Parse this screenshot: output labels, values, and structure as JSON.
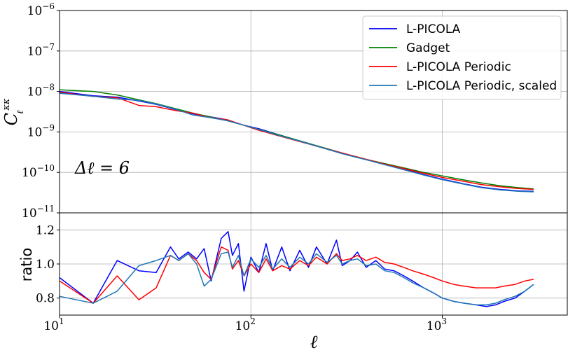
{
  "chart_data": [
    {
      "type": "line",
      "panel": "top",
      "xscale": "log",
      "yscale": "log",
      "xlim": [
        10,
        4500
      ],
      "ylim": [
        1e-11,
        1e-06
      ],
      "ylabel": "C_ℓ^κκ",
      "grid": true,
      "legend_position": "top-right",
      "annotation": "Δℓ = 6",
      "x_ticks": [
        {
          "base": "10",
          "exp": "1",
          "value": 10
        },
        {
          "base": "10",
          "exp": "2",
          "value": 100
        },
        {
          "base": "10",
          "exp": "3",
          "value": 1000
        }
      ],
      "y_ticks": [
        {
          "base": "10",
          "exp": "−6",
          "value": 1e-06
        },
        {
          "base": "10",
          "exp": "−7",
          "value": 1e-07
        },
        {
          "base": "10",
          "exp": "−8",
          "value": 1e-08
        },
        {
          "base": "10",
          "exp": "−9",
          "value": 1e-09
        },
        {
          "base": "10",
          "exp": "−10",
          "value": 1e-10
        },
        {
          "base": "10",
          "exp": "−11",
          "value": 1e-11
        }
      ],
      "x": [
        10,
        15,
        20,
        26,
        32,
        40,
        50,
        60,
        75,
        90,
        110,
        140,
        180,
        230,
        300,
        400,
        500,
        650,
        800,
        1000,
        1300,
        1600,
        2000,
        2500,
        3000
      ],
      "series": [
        {
          "name": "L-PICOLA",
          "color": "#0000ff",
          "values": [
            1e-08,
            7.8e-09,
            7.2e-09,
            5.8e-09,
            4.8e-09,
            3.6e-09,
            2.8e-09,
            2.4e-09,
            2e-09,
            1.5e-09,
            1.2e-09,
            8.5e-10,
            6e-10,
            4.3e-10,
            3e-10,
            2.1e-10,
            1.6e-10,
            1.15e-10,
            8.8e-11,
            6.8e-11,
            5.2e-11,
            4.3e-11,
            3.8e-11,
            3.5e-11,
            3.4e-11
          ]
        },
        {
          "name": "Gadget",
          "color": "#008000",
          "values": [
            1.1e-08,
            1e-08,
            8.2e-09,
            6.2e-09,
            5e-09,
            3.8e-09,
            2.9e-09,
            2.4e-09,
            1.9e-09,
            1.5e-09,
            1.15e-09,
            8.5e-10,
            6e-10,
            4.3e-10,
            3e-10,
            2.1e-10,
            1.65e-10,
            1.25e-10,
            1e-10,
            8.2e-11,
            6.5e-11,
            5.5e-11,
            4.7e-11,
            4.2e-11,
            3.9e-11
          ]
        },
        {
          "name": "L-PICOLA Periodic",
          "color": "#ff0000",
          "values": [
            9.5e-09,
            7.5e-09,
            7e-09,
            4.5e-09,
            4.2e-09,
            3.4e-09,
            2.9e-09,
            2.3e-09,
            2e-09,
            1.5e-09,
            1.1e-09,
            8e-10,
            5.8e-10,
            4.2e-10,
            3e-10,
            2.1e-10,
            1.6e-10,
            1.2e-10,
            9.5e-11,
            7.5e-11,
            6e-11,
            5e-11,
            4.4e-11,
            4e-11,
            3.8e-11
          ]
        },
        {
          "name": "L-PICOLA Periodic, scaled",
          "color": "#1f77b4",
          "values": [
            9e-09,
            7.6e-09,
            6.5e-09,
            6e-09,
            4.9e-09,
            3.7e-09,
            2.6e-09,
            2.3e-09,
            1.9e-09,
            1.5e-09,
            1.15e-09,
            8.2e-10,
            5.9e-10,
            4.2e-10,
            2.9e-10,
            2.05e-10,
            1.55e-10,
            1.12e-10,
            8.6e-11,
            6.6e-11,
            5.1e-11,
            4.2e-11,
            3.7e-11,
            3.4e-11,
            3.3e-11
          ]
        }
      ]
    },
    {
      "type": "line",
      "panel": "bottom",
      "xscale": "log",
      "xlim": [
        10,
        4500
      ],
      "ylim": [
        0.7,
        1.3
      ],
      "xlabel": "ℓ",
      "ylabel": "ratio",
      "grid": true,
      "y_ticks": [
        {
          "label": "0.8",
          "value": 0.8
        },
        {
          "label": "1.0",
          "value": 1.0
        },
        {
          "label": "1.2",
          "value": 1.2
        }
      ],
      "x": [
        10,
        15,
        20,
        26,
        32,
        38,
        42,
        47,
        52,
        57,
        62,
        70,
        76,
        80,
        86,
        92,
        100,
        110,
        120,
        130,
        145,
        160,
        180,
        200,
        220,
        250,
        280,
        300,
        330,
        360,
        400,
        450,
        500,
        560,
        630,
        700,
        800,
        900,
        1000,
        1150,
        1300,
        1500,
        1700,
        1900,
        2100,
        2400,
        2700,
        3000
      ],
      "series": [
        {
          "name": "L-PICOLA",
          "color": "#0000ff",
          "values": [
            0.92,
            0.77,
            1.02,
            0.96,
            0.95,
            1.1,
            1.03,
            1.07,
            1.03,
            1.09,
            0.9,
            1.15,
            1.19,
            1.05,
            1.12,
            0.84,
            1.04,
            0.95,
            1.12,
            0.96,
            1.1,
            0.96,
            1.08,
            0.98,
            1.1,
            1.0,
            1.14,
            0.99,
            1.02,
            1.07,
            0.98,
            1.02,
            0.97,
            0.96,
            0.93,
            0.9,
            0.86,
            0.83,
            0.8,
            0.78,
            0.77,
            0.76,
            0.75,
            0.76,
            0.78,
            0.8,
            0.84,
            0.88
          ]
        },
        {
          "name": "L-PICOLA Periodic",
          "color": "#ff0000",
          "values": [
            0.9,
            0.77,
            0.93,
            0.79,
            0.86,
            1.05,
            1.02,
            1.06,
            1.02,
            0.95,
            0.91,
            1.1,
            1.08,
            0.97,
            1.02,
            0.93,
            1.0,
            0.95,
            1.03,
            0.96,
            0.99,
            0.97,
            1.02,
            0.99,
            1.04,
            1.0,
            1.06,
            1.02,
            1.03,
            1.05,
            1.02,
            1.04,
            1.01,
            1.0,
            0.98,
            0.96,
            0.94,
            0.92,
            0.9,
            0.88,
            0.87,
            0.86,
            0.86,
            0.86,
            0.87,
            0.88,
            0.9,
            0.91
          ]
        },
        {
          "name": "L-PICOLA Periodic, scaled",
          "color": "#1f77b4",
          "values": [
            0.81,
            0.77,
            0.84,
            0.99,
            1.02,
            1.05,
            1.02,
            1.06,
            1.0,
            0.87,
            0.91,
            1.06,
            1.07,
            0.98,
            1.05,
            0.93,
            1.03,
            0.98,
            1.05,
            0.97,
            1.03,
            0.98,
            1.04,
            1.0,
            1.06,
            1.01,
            1.05,
            1.0,
            1.02,
            1.03,
            0.99,
            1.0,
            0.96,
            0.95,
            0.92,
            0.89,
            0.86,
            0.83,
            0.8,
            0.78,
            0.77,
            0.76,
            0.76,
            0.77,
            0.79,
            0.81,
            0.84,
            0.88
          ]
        }
      ]
    }
  ]
}
